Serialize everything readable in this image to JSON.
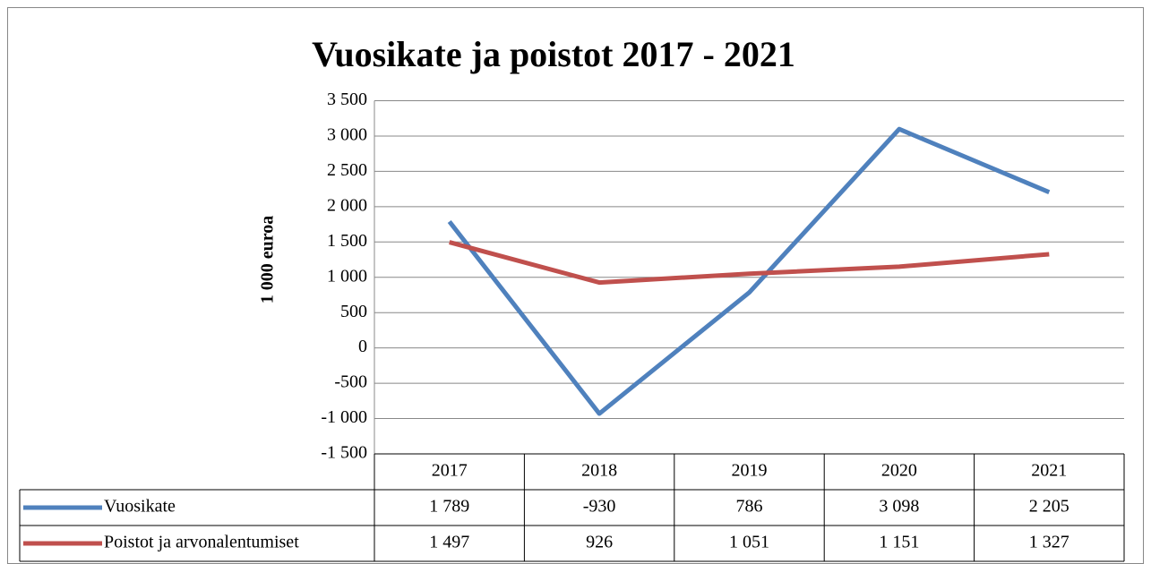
{
  "chart_data": {
    "type": "line",
    "title": "Vuosikate ja poistot 2017 - 2021",
    "ylabel": "1 000 euroa",
    "categories": [
      "2017",
      "2018",
      "2019",
      "2020",
      "2021"
    ],
    "series": [
      {
        "name": "Vuosikate",
        "color": "#4f81bd",
        "values": [
          1789,
          -930,
          786,
          3098,
          2205
        ],
        "value_labels": [
          "1 789",
          "-930",
          "786",
          "3 098",
          "2 205"
        ]
      },
      {
        "name": "Poistot ja arvonalentumiset",
        "color": "#c0504d",
        "values": [
          1497,
          926,
          1051,
          1151,
          1327
        ],
        "value_labels": [
          "1 497",
          "926",
          "1 051",
          "1 151",
          "1 327"
        ]
      }
    ],
    "ylim": [
      -1500,
      3500
    ],
    "yticks": [
      {
        "value": -1500,
        "label": "-1 500"
      },
      {
        "value": -1000,
        "label": "-1 000"
      },
      -500,
      0,
      500,
      {
        "value": 1000,
        "label": "1 000"
      },
      {
        "value": 1500,
        "label": "1 500"
      },
      {
        "value": 2000,
        "label": "2 000"
      },
      {
        "value": 2500,
        "label": "2 500"
      },
      {
        "value": 3000,
        "label": "3 000"
      },
      {
        "value": 3500,
        "label": "3 500"
      }
    ],
    "grid": true,
    "data_table": true
  }
}
